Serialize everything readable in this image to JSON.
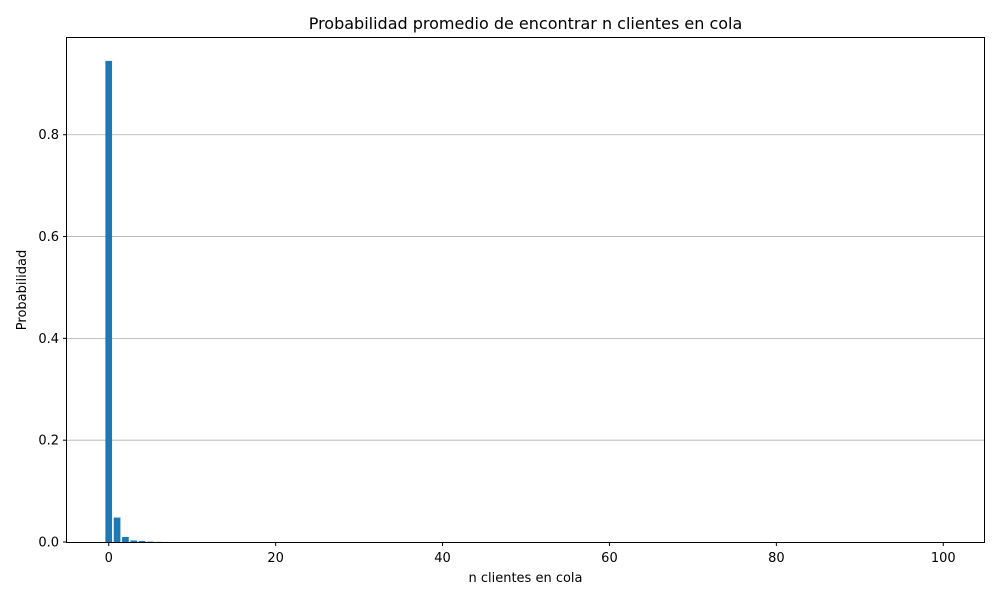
{
  "chart_data": {
    "type": "bar",
    "title": "Probabilidad promedio de encontrar n clientes en cola",
    "xlabel": "n clientes en cola",
    "ylabel": "Probabilidad",
    "xlim": [
      -5,
      105
    ],
    "ylim": [
      0,
      0.99
    ],
    "xticks": [
      0,
      20,
      40,
      60,
      80,
      100
    ],
    "xtick_labels": [
      "0",
      "20",
      "40",
      "60",
      "80",
      "100"
    ],
    "yticks": [
      0.0,
      0.2,
      0.4,
      0.6,
      0.8
    ],
    "ytick_labels": [
      "0.0",
      "0.2",
      "0.4",
      "0.6",
      "0.8"
    ],
    "grid": "y",
    "color": "#1f77b4",
    "x": [
      0,
      1,
      2,
      3,
      4,
      5,
      6,
      7,
      8
    ],
    "values": [
      0.945,
      0.048,
      0.01,
      0.003,
      0.002,
      0.0008,
      0.0003,
      0.0001,
      5e-05
    ]
  }
}
